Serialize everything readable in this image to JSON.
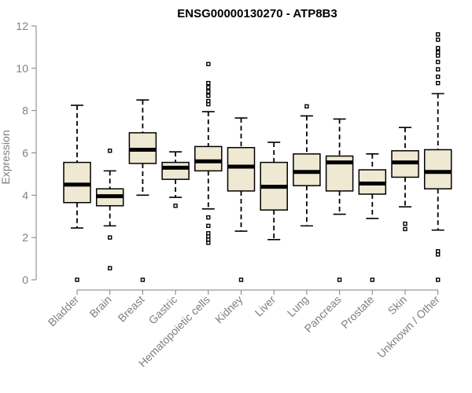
{
  "chart_data": {
    "type": "boxplot",
    "title": "ENSG00000130270 - ATP8B3",
    "xlabel": "",
    "ylabel": "Expression",
    "ylim": [
      0,
      12
    ],
    "yticks": [
      0,
      2,
      4,
      6,
      8,
      10,
      12
    ],
    "categories": [
      "Bladder",
      "Brain",
      "Breast",
      "Gastric",
      "Hematopoietic cells",
      "Kidney",
      "Liver",
      "Lung",
      "Pancreas",
      "Prostate",
      "Skin",
      "Unknown / Other"
    ],
    "boxes": [
      {
        "category": "Bladder",
        "whisker_low": 2.45,
        "q1": 3.65,
        "median": 4.5,
        "q3": 5.55,
        "whisker_high": 8.25,
        "outliers": [
          0
        ]
      },
      {
        "category": "Brain",
        "whisker_low": 2.55,
        "q1": 3.5,
        "median": 3.95,
        "q3": 4.3,
        "whisker_high": 5.15,
        "outliers": [
          6.1,
          2.0,
          0.55
        ]
      },
      {
        "category": "Breast",
        "whisker_low": 4.0,
        "q1": 5.5,
        "median": 6.15,
        "q3": 6.95,
        "whisker_high": 8.5,
        "outliers": [
          0
        ]
      },
      {
        "category": "Gastric",
        "whisker_low": 3.9,
        "q1": 4.75,
        "median": 5.3,
        "q3": 5.55,
        "whisker_high": 6.05,
        "outliers": [
          3.5
        ]
      },
      {
        "category": "Hematopoietic cells",
        "whisker_low": 3.35,
        "q1": 5.15,
        "median": 5.6,
        "q3": 6.3,
        "whisker_high": 7.95,
        "outliers": [
          10.2,
          9.3,
          9.1,
          8.9,
          8.7,
          8.45,
          8.3,
          2.95,
          2.55,
          2.2,
          2.05,
          1.9,
          1.75
        ]
      },
      {
        "category": "Kidney",
        "whisker_low": 2.3,
        "q1": 4.2,
        "median": 5.35,
        "q3": 6.25,
        "whisker_high": 7.65,
        "outliers": [
          0
        ]
      },
      {
        "category": "Liver",
        "whisker_low": 1.9,
        "q1": 3.3,
        "median": 4.4,
        "q3": 5.55,
        "whisker_high": 6.5,
        "outliers": []
      },
      {
        "category": "Lung",
        "whisker_low": 2.55,
        "q1": 4.45,
        "median": 5.1,
        "q3": 5.95,
        "whisker_high": 7.75,
        "outliers": [
          8.2
        ]
      },
      {
        "category": "Pancreas",
        "whisker_low": 3.1,
        "q1": 4.2,
        "median": 5.55,
        "q3": 5.85,
        "whisker_high": 7.6,
        "outliers": [
          0
        ]
      },
      {
        "category": "Prostate",
        "whisker_low": 2.9,
        "q1": 4.05,
        "median": 4.55,
        "q3": 5.2,
        "whisker_high": 5.95,
        "outliers": [
          0
        ]
      },
      {
        "category": "Skin",
        "whisker_low": 3.45,
        "q1": 4.85,
        "median": 5.55,
        "q3": 6.1,
        "whisker_high": 7.2,
        "outliers": [
          2.65,
          2.4
        ]
      },
      {
        "category": "Unknown / Other",
        "whisker_low": 2.35,
        "q1": 4.3,
        "median": 5.1,
        "q3": 6.15,
        "whisker_high": 8.8,
        "outliers": [
          11.6,
          11.35,
          10.95,
          10.75,
          10.6,
          10.3,
          9.95,
          9.6,
          9.3,
          1.35,
          1.2,
          0
        ]
      }
    ],
    "colors": {
      "box_fill": "#efe8d2",
      "axis": "#7f7f7f"
    }
  }
}
